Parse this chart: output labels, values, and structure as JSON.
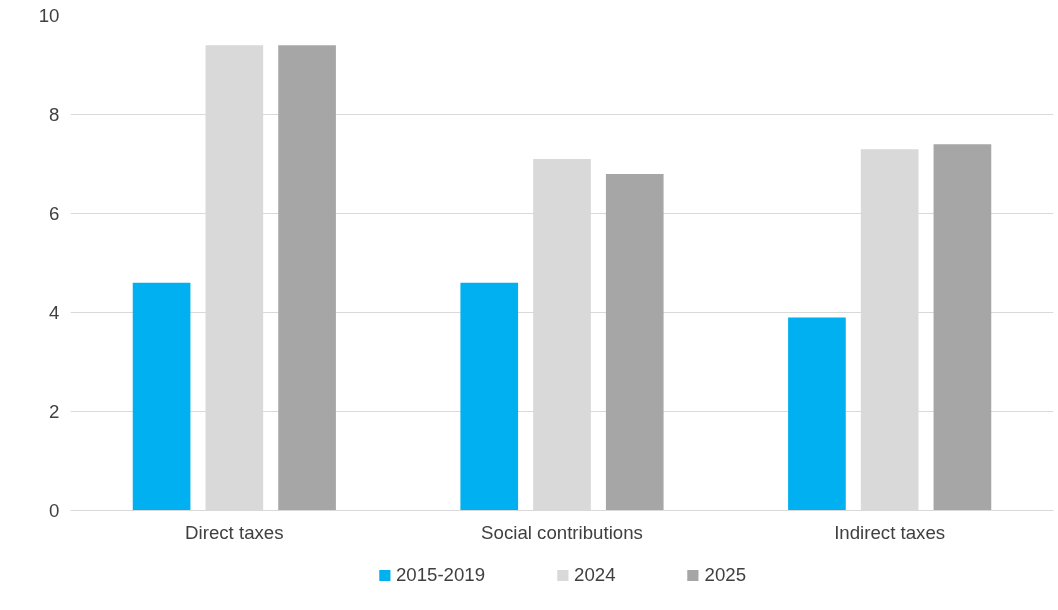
{
  "chart_data": {
    "type": "bar",
    "categories": [
      "Direct taxes",
      "Social contributions",
      "Indirect taxes"
    ],
    "series": [
      {
        "name": "2015-2019",
        "color": "#00b0f0",
        "values": [
          4.6,
          4.6,
          3.9
        ]
      },
      {
        "name": "2024",
        "color": "#d9d9d9",
        "values": [
          9.4,
          7.1,
          7.3
        ]
      },
      {
        "name": "2025",
        "color": "#a6a6a6",
        "values": [
          9.4,
          6.8,
          7.4
        ]
      }
    ],
    "ylim": [
      0,
      10
    ],
    "yticks": [
      0,
      2,
      4,
      6,
      8,
      10
    ],
    "grid": "y",
    "legend": "bottom"
  }
}
